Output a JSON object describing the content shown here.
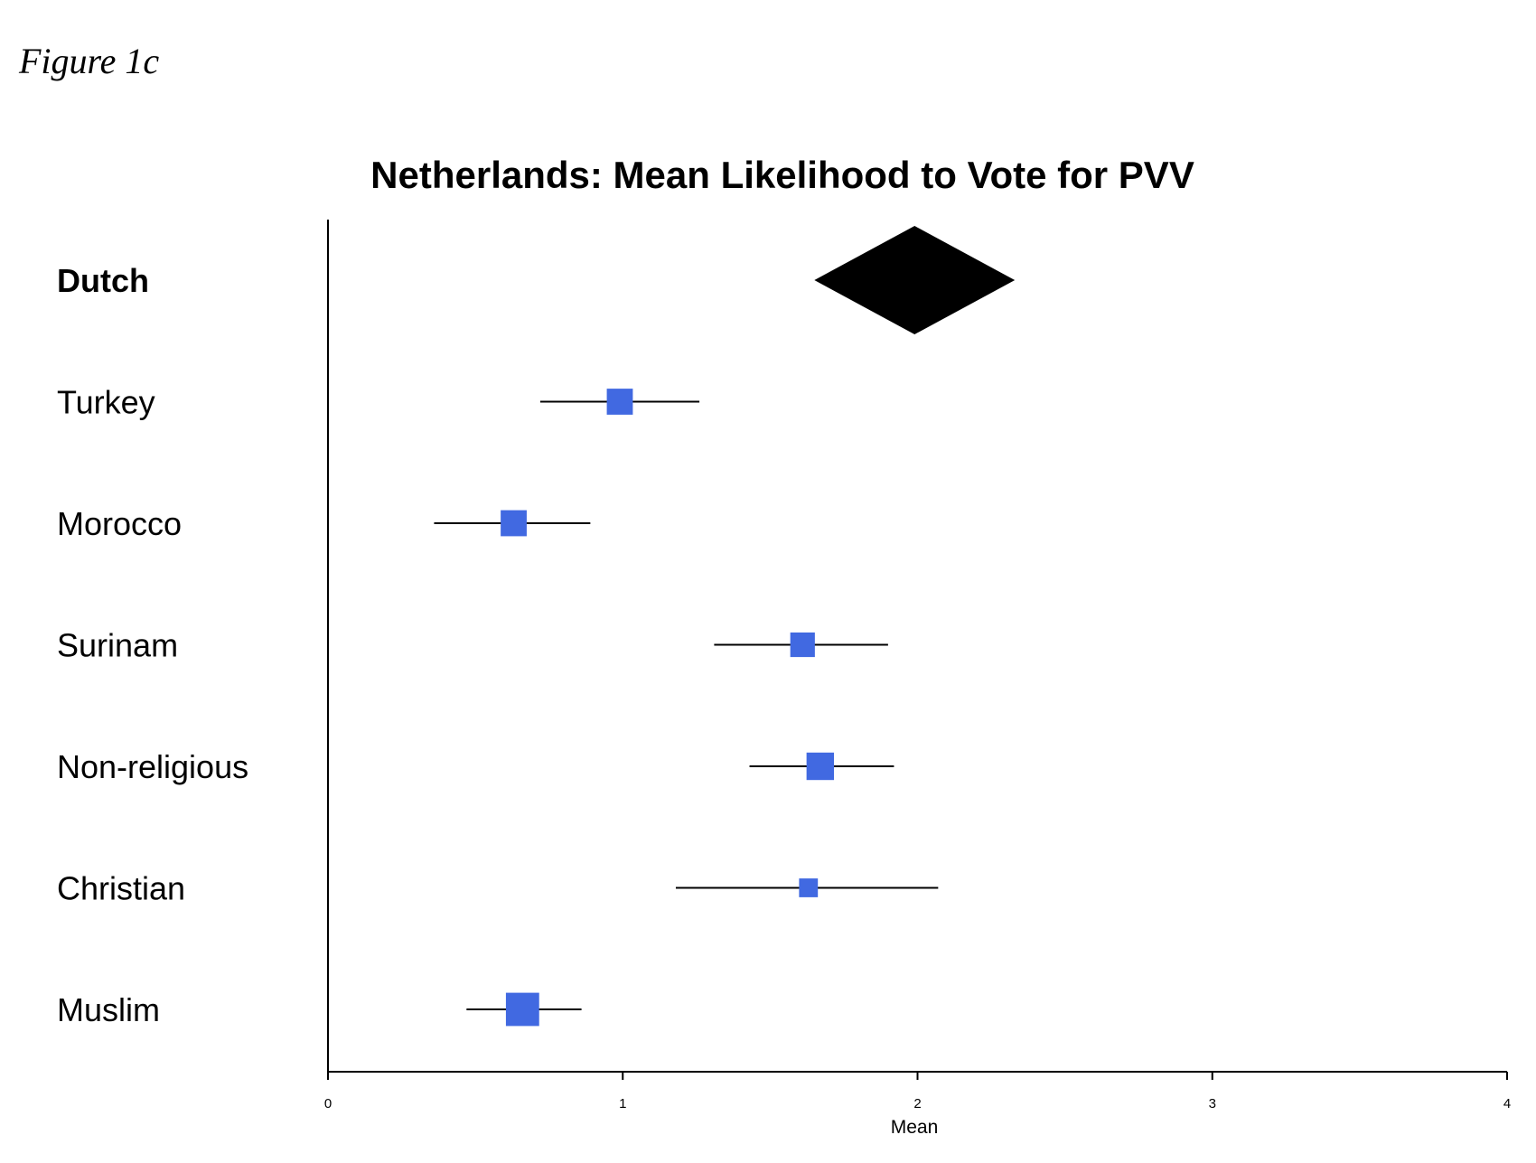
{
  "figure_label": "Figure 1c",
  "chart_data": {
    "type": "forest",
    "title": "Netherlands: Mean Likelihood to Vote for PVV",
    "xlabel": "Mean",
    "xlim": [
      0,
      4
    ],
    "xticks": [
      "0",
      "1",
      "2",
      "3",
      "4"
    ],
    "rows": [
      {
        "label": "Dutch",
        "mean": 1.99,
        "lower": 1.65,
        "upper": 2.33,
        "marker": "diamond",
        "bold": true
      },
      {
        "label": "Turkey",
        "mean": 0.99,
        "lower": 0.72,
        "upper": 1.26,
        "marker": "square",
        "weight": 0.9
      },
      {
        "label": "Morocco",
        "mean": 0.63,
        "lower": 0.36,
        "upper": 0.89,
        "marker": "square",
        "weight": 0.9
      },
      {
        "label": "Surinam",
        "mean": 1.61,
        "lower": 1.31,
        "upper": 1.9,
        "marker": "square",
        "weight": 0.85
      },
      {
        "label": "Non-religious",
        "mean": 1.67,
        "lower": 1.43,
        "upper": 1.92,
        "marker": "square",
        "weight": 0.95
      },
      {
        "label": "Christian",
        "mean": 1.63,
        "lower": 1.18,
        "upper": 2.07,
        "marker": "square",
        "weight": 0.65
      },
      {
        "label": "Muslim",
        "mean": 0.66,
        "lower": 0.47,
        "upper": 0.86,
        "marker": "square",
        "weight": 1.15
      }
    ],
    "colors": {
      "square": "#4169e1",
      "diamond": "#000000",
      "line": "#000000"
    },
    "grid": false,
    "legend": "none"
  }
}
